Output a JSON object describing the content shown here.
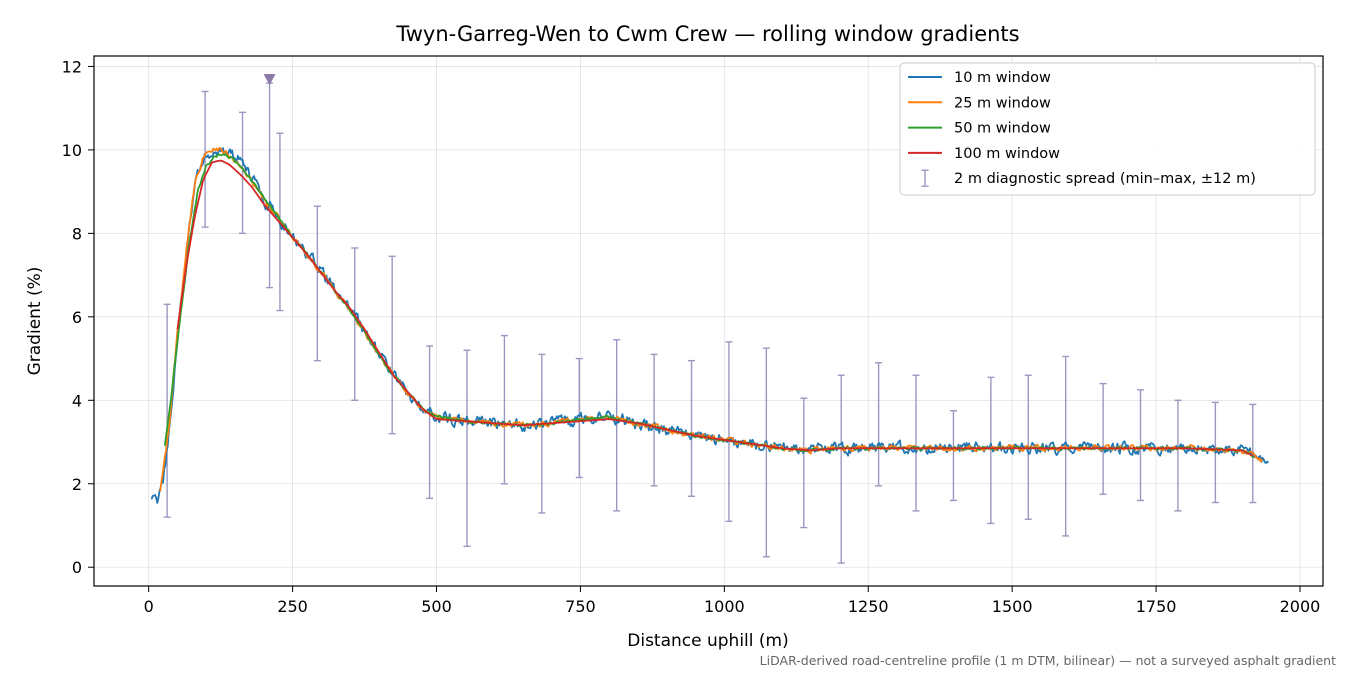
{
  "chart_data": {
    "type": "line",
    "title": "Twyn-Garreg-Wen to Cwm Crew — rolling window gradients",
    "xlabel": "Distance uphill (m)",
    "ylabel": "Gradient (%)",
    "xlim": [
      -95,
      2040
    ],
    "ylim": [
      -0.45,
      12.25
    ],
    "x_ticks": [
      0,
      250,
      500,
      750,
      1000,
      1250,
      1500,
      1750,
      2000
    ],
    "y_ticks": [
      0,
      2,
      4,
      6,
      8,
      10,
      12
    ],
    "grid": true,
    "legend_position": "top-right",
    "footnote": "LiDAR-derived road-centreline profile (1 m DTM, bilinear) — not a surveyed asphalt gradient",
    "peak_marker": {
      "x": 210,
      "y": 11.7,
      "color": "#8c7aa8"
    },
    "series": [
      {
        "name": "10 m window",
        "color": "#1f77b4",
        "noise": 0.22,
        "x": [
          5,
          15,
          25,
          35,
          50,
          65,
          80,
          95,
          110,
          125,
          140,
          160,
          180,
          200,
          225,
          250,
          275,
          300,
          325,
          350,
          375,
          400,
          425,
          450,
          475,
          500,
          550,
          600,
          650,
          700,
          750,
          800,
          850,
          900,
          950,
          1000,
          1050,
          1100,
          1150,
          1200,
          1300,
          1400,
          1500,
          1600,
          1700,
          1800,
          1900,
          1930,
          1945
        ],
        "y": [
          1.6,
          1.6,
          2.1,
          3.2,
          5.5,
          7.5,
          9.2,
          9.8,
          10.0,
          10.0,
          9.9,
          9.7,
          9.3,
          8.8,
          8.4,
          7.9,
          7.5,
          7.1,
          6.6,
          6.2,
          5.7,
          5.1,
          4.6,
          4.2,
          3.8,
          3.6,
          3.5,
          3.45,
          3.4,
          3.45,
          3.55,
          3.6,
          3.45,
          3.3,
          3.15,
          3.05,
          2.95,
          2.85,
          2.8,
          2.85,
          2.85,
          2.85,
          2.85,
          2.85,
          2.85,
          2.85,
          2.8,
          2.65,
          2.5
        ]
      },
      {
        "name": "25 m window",
        "color": "#ff7f0e",
        "noise": 0.1,
        "x": [
          20,
          35,
          50,
          65,
          80,
          95,
          110,
          125,
          140,
          160,
          180,
          200,
          225,
          250,
          275,
          300,
          325,
          350,
          375,
          400,
          425,
          450,
          475,
          500,
          550,
          600,
          650,
          700,
          750,
          800,
          850,
          900,
          950,
          1000,
          1050,
          1100,
          1150,
          1200,
          1300,
          1400,
          1500,
          1600,
          1700,
          1800,
          1900,
          1935
        ],
        "y": [
          1.8,
          3.3,
          5.6,
          7.6,
          9.2,
          9.8,
          10.0,
          10.0,
          9.85,
          9.6,
          9.25,
          8.8,
          8.4,
          7.9,
          7.5,
          7.05,
          6.6,
          6.15,
          5.65,
          5.1,
          4.6,
          4.2,
          3.8,
          3.6,
          3.5,
          3.45,
          3.4,
          3.45,
          3.55,
          3.6,
          3.45,
          3.3,
          3.15,
          3.05,
          2.95,
          2.85,
          2.8,
          2.85,
          2.85,
          2.85,
          2.85,
          2.85,
          2.85,
          2.85,
          2.8,
          2.55
        ]
      },
      {
        "name": "50 m window",
        "color": "#2ca02c",
        "noise": 0.05,
        "x": [
          28,
          40,
          55,
          70,
          85,
          100,
          115,
          130,
          145,
          165,
          185,
          205,
          225,
          250,
          275,
          300,
          325,
          350,
          375,
          400,
          425,
          450,
          475,
          500,
          550,
          600,
          650,
          700,
          750,
          800,
          850,
          900,
          950,
          1000,
          1050,
          1100,
          1150,
          1200,
          1300,
          1400,
          1500,
          1600,
          1700,
          1800,
          1900,
          1920
        ],
        "y": [
          2.9,
          4.2,
          6.0,
          7.7,
          9.0,
          9.6,
          9.85,
          9.9,
          9.8,
          9.5,
          9.15,
          8.75,
          8.4,
          7.9,
          7.5,
          7.05,
          6.6,
          6.15,
          5.65,
          5.1,
          4.6,
          4.2,
          3.8,
          3.6,
          3.5,
          3.45,
          3.4,
          3.45,
          3.55,
          3.6,
          3.45,
          3.3,
          3.15,
          3.05,
          2.95,
          2.85,
          2.8,
          2.85,
          2.85,
          2.85,
          2.85,
          2.85,
          2.85,
          2.85,
          2.8,
          2.65
        ]
      },
      {
        "name": "100 m window",
        "color": "#d62728",
        "noise": 0,
        "x": [
          50,
          65,
          80,
          95,
          110,
          125,
          140,
          160,
          180,
          200,
          225,
          250,
          275,
          300,
          325,
          350,
          375,
          400,
          425,
          450,
          475,
          500,
          550,
          600,
          650,
          700,
          750,
          800,
          850,
          900,
          950,
          1000,
          1050,
          1100,
          1150,
          1200,
          1300,
          1400,
          1500,
          1600,
          1700,
          1800,
          1900,
          1920
        ],
        "y": [
          5.7,
          7.2,
          8.4,
          9.3,
          9.7,
          9.75,
          9.65,
          9.4,
          9.1,
          8.7,
          8.3,
          7.9,
          7.5,
          7.05,
          6.6,
          6.2,
          5.7,
          5.15,
          4.6,
          4.2,
          3.8,
          3.55,
          3.5,
          3.45,
          3.4,
          3.45,
          3.5,
          3.55,
          3.45,
          3.3,
          3.15,
          3.05,
          2.95,
          2.85,
          2.8,
          2.85,
          2.85,
          2.85,
          2.85,
          2.85,
          2.85,
          2.85,
          2.8,
          2.65
        ]
      }
    ],
    "diagnostic_spread": {
      "name": "2 m diagnostic spread (min–max, ±12 m)",
      "color": "#9a98c0",
      "points": [
        {
          "x": 32,
          "min": 1.2,
          "max": 6.3
        },
        {
          "x": 98,
          "min": 8.15,
          "max": 11.4
        },
        {
          "x": 163,
          "min": 8.0,
          "max": 10.9
        },
        {
          "x": 210,
          "min": 6.7,
          "max": 11.6
        },
        {
          "x": 228,
          "min": 6.15,
          "max": 10.4
        },
        {
          "x": 293,
          "min": 4.95,
          "max": 8.65
        },
        {
          "x": 358,
          "min": 4.0,
          "max": 7.65
        },
        {
          "x": 423,
          "min": 3.2,
          "max": 7.45
        },
        {
          "x": 488,
          "min": 1.65,
          "max": 5.3
        },
        {
          "x": 553,
          "min": 0.5,
          "max": 5.2
        },
        {
          "x": 618,
          "min": 2.0,
          "max": 5.55
        },
        {
          "x": 683,
          "min": 1.3,
          "max": 5.1
        },
        {
          "x": 748,
          "min": 2.15,
          "max": 5.0
        },
        {
          "x": 813,
          "min": 1.35,
          "max": 5.45
        },
        {
          "x": 878,
          "min": 1.95,
          "max": 5.1
        },
        {
          "x": 943,
          "min": 1.7,
          "max": 4.95
        },
        {
          "x": 1008,
          "min": 1.1,
          "max": 5.4
        },
        {
          "x": 1073,
          "min": 0.25,
          "max": 5.25
        },
        {
          "x": 1138,
          "min": 0.95,
          "max": 4.05
        },
        {
          "x": 1203,
          "min": 0.1,
          "max": 4.6
        },
        {
          "x": 1268,
          "min": 1.95,
          "max": 4.9
        },
        {
          "x": 1333,
          "min": 1.35,
          "max": 4.6
        },
        {
          "x": 1398,
          "min": 1.6,
          "max": 3.75
        },
        {
          "x": 1463,
          "min": 1.05,
          "max": 4.55
        },
        {
          "x": 1528,
          "min": 1.15,
          "max": 4.6
        },
        {
          "x": 1593,
          "min": 0.75,
          "max": 5.05
        },
        {
          "x": 1658,
          "min": 1.75,
          "max": 4.4
        },
        {
          "x": 1723,
          "min": 1.6,
          "max": 4.25
        },
        {
          "x": 1788,
          "min": 1.35,
          "max": 4.0
        },
        {
          "x": 1853,
          "min": 1.55,
          "max": 3.95
        },
        {
          "x": 1918,
          "min": 1.55,
          "max": 3.9
        }
      ]
    }
  }
}
